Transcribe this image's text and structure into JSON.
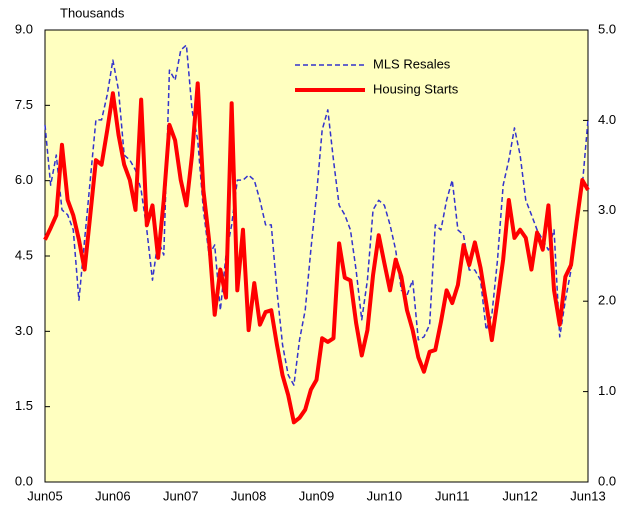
{
  "chart_data": {
    "type": "line",
    "ylabel": "Thousands",
    "categories": [
      "Jun05",
      null,
      null,
      null,
      null,
      null,
      null,
      null,
      null,
      null,
      null,
      null,
      "Jun06",
      null,
      null,
      null,
      null,
      null,
      null,
      null,
      null,
      null,
      null,
      null,
      "Jun07",
      null,
      null,
      null,
      null,
      null,
      null,
      null,
      null,
      null,
      null,
      null,
      "Jun08",
      null,
      null,
      null,
      null,
      null,
      null,
      null,
      null,
      null,
      null,
      null,
      "Jun09",
      null,
      null,
      null,
      null,
      null,
      null,
      null,
      null,
      null,
      null,
      null,
      "Jun10",
      null,
      null,
      null,
      null,
      null,
      null,
      null,
      null,
      null,
      null,
      null,
      "Jun11",
      null,
      null,
      null,
      null,
      null,
      null,
      null,
      null,
      null,
      null,
      null,
      "Jun12",
      null,
      null,
      null,
      null,
      null,
      null,
      null,
      null,
      null,
      null,
      null,
      "Jun13"
    ],
    "series": [
      {
        "name": "MLS Resales",
        "color": "#3333cc",
        "dash": true,
        "axis": "y",
        "values": [
          7.11,
          5.91,
          6.51,
          5.42,
          5.32,
          5.02,
          3.62,
          4.82,
          6.01,
          7.21,
          7.21,
          7.71,
          8.4,
          7.8,
          6.51,
          6.41,
          6.21,
          5.81,
          5.02,
          4.02,
          4.82,
          4.52,
          8.2,
          8.0,
          8.6,
          8.7,
          7.41,
          6.81,
          5.42,
          4.52,
          4.72,
          3.42,
          4.52,
          5.12,
          6.01,
          6.01,
          6.11,
          6.01,
          5.61,
          5.12,
          5.12,
          3.82,
          2.73,
          2.13,
          1.93,
          2.83,
          3.42,
          4.62,
          5.71,
          7.01,
          7.41,
          6.41,
          5.51,
          5.32,
          5.02,
          4.22,
          3.23,
          4.02,
          5.42,
          5.61,
          5.51,
          5.12,
          4.62,
          3.82,
          3.72,
          4.02,
          2.83,
          2.89,
          3.13,
          5.12,
          5.02,
          5.61,
          6.01,
          5.02,
          4.92,
          4.22,
          4.22,
          4.02,
          3.03,
          3.33,
          4.42,
          5.91,
          6.41,
          7.05,
          6.51,
          5.61,
          5.32,
          5.02,
          4.82,
          4.62,
          5.02,
          2.89,
          3.62,
          4.22,
          5.02,
          5.91,
          7.21
        ]
      },
      {
        "name": "Housing Starts",
        "color": "#ff0000",
        "dash": false,
        "axis": "y2",
        "values": [
          2.68,
          2.81,
          2.95,
          3.73,
          3.12,
          2.95,
          2.68,
          2.35,
          2.95,
          3.56,
          3.51,
          3.89,
          4.3,
          3.84,
          3.51,
          3.34,
          3.01,
          4.23,
          2.84,
          3.06,
          2.48,
          3.12,
          3.95,
          3.78,
          3.34,
          3.06,
          3.62,
          4.41,
          3.23,
          2.68,
          1.85,
          2.35,
          2.04,
          4.19,
          2.12,
          2.79,
          1.68,
          2.2,
          1.74,
          1.88,
          1.9,
          1.52,
          1.18,
          0.96,
          0.66,
          0.71,
          0.8,
          1.02,
          1.13,
          1.59,
          1.55,
          1.59,
          2.64,
          2.26,
          2.23,
          1.76,
          1.4,
          1.68,
          2.29,
          2.73,
          2.42,
          2.12,
          2.46,
          2.27,
          1.9,
          1.68,
          1.38,
          1.22,
          1.44,
          1.46,
          1.77,
          2.12,
          1.98,
          2.18,
          2.62,
          2.4,
          2.65,
          2.37,
          1.98,
          1.57,
          2.01,
          2.46,
          3.12,
          2.7,
          2.79,
          2.7,
          2.35,
          2.76,
          2.57,
          3.06,
          2.12,
          1.74,
          2.27,
          2.4,
          2.88,
          3.34,
          3.23
        ]
      }
    ],
    "ylim": [
      0,
      9
    ],
    "yticks": [
      {
        "value": 0,
        "label": "0.0"
      },
      1.5,
      {
        "value": 3,
        "label": "3.0"
      },
      4.5,
      {
        "value": 6,
        "label": "6.0"
      },
      7.5,
      {
        "value": 9,
        "label": "9.0"
      }
    ],
    "y2lim": [
      0,
      5
    ],
    "y2ticks": [
      {
        "value": 0,
        "label": "0.0"
      },
      {
        "value": 1,
        "label": "1.0"
      },
      {
        "value": 2,
        "label": "2.0"
      },
      {
        "value": 3,
        "label": "3.0"
      },
      {
        "value": 4,
        "label": "4.0"
      },
      {
        "value": 5,
        "label": "5.0"
      }
    ],
    "legend": "upper center",
    "plot_background": "#ffffc0"
  }
}
